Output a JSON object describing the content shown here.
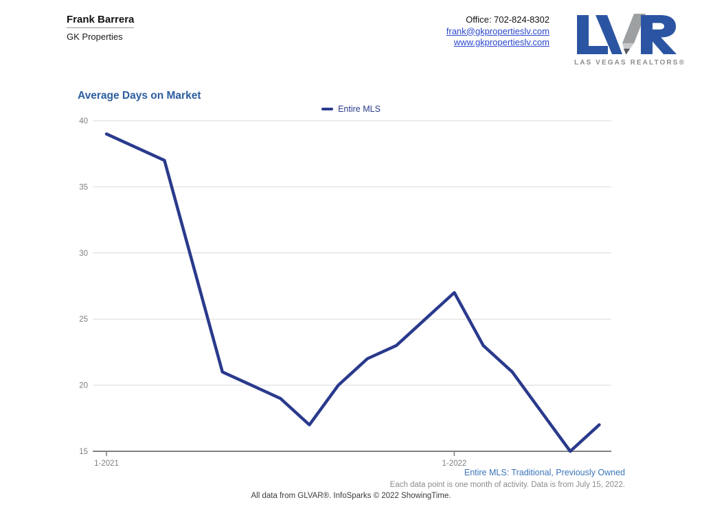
{
  "header": {
    "agent_name": "Frank Barrera",
    "company": "GK Properties",
    "office_phone": "Office: 702-824-8302",
    "email": "frank@gkpropertieslv.com",
    "website": "www.gkpropertieslv.com",
    "link_color": "#2A47CE",
    "logo": {
      "acronym": "LVR",
      "tagline": "LAS VEGAS REALTORS®",
      "blue": "#2B55A2",
      "gray": "#8A8D8F",
      "pencil_body": "#9DA0A3",
      "pencil_cone": "#C7C9CB",
      "pencil_tip": "#55585C"
    }
  },
  "chart_data": {
    "type": "line",
    "title": "Average Days on Market",
    "title_color": "#2B5D9F",
    "x": [
      "1-2021",
      "2-2021",
      "3-2021",
      "4-2021",
      "5-2021",
      "6-2021",
      "7-2021",
      "8-2021",
      "9-2021",
      "10-2021",
      "11-2021",
      "12-2021",
      "1-2022",
      "2-2022",
      "3-2022",
      "4-2022",
      "5-2022",
      "6-2022"
    ],
    "series": [
      {
        "name": "Entire MLS",
        "color": "#2A3A8C",
        "values": [
          39,
          38,
          37,
          29,
          21,
          20,
          19,
          17,
          20,
          22,
          23,
          25,
          27,
          23,
          21,
          18,
          15,
          17
        ]
      }
    ],
    "ylim": [
      15,
      40
    ],
    "y_ticks": [
      15,
      20,
      25,
      30,
      35,
      40
    ],
    "x_tick_indices": [
      0,
      12
    ],
    "x_tick_labels": [
      "1-2021",
      "1-2022"
    ],
    "grid": true,
    "grid_color": "#D9D9D9",
    "axis_color": "#7F7F7F",
    "legend_position": "top-center"
  },
  "footnotes": {
    "series_note": "Entire MLS: Traditional, Previously Owned",
    "series_note_color": "#3B74B9",
    "data_note": "Each data point is one month of activity. Data is from July 15, 2022.",
    "source_note": "All data from GLVAR®. InfoSparks © 2022 ShowingTime."
  }
}
